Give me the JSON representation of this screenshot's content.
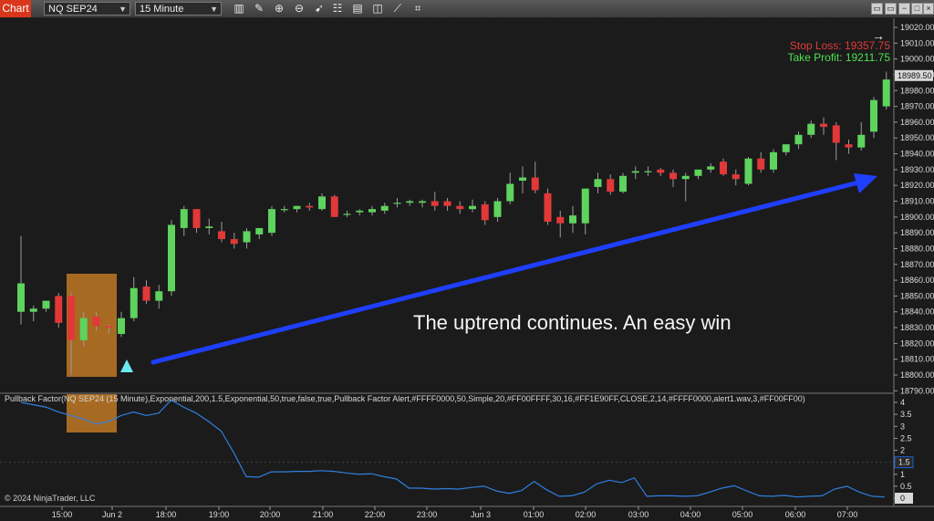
{
  "toolbar": {
    "app_label": "Chart",
    "instrument": "NQ SEP24",
    "interval": "15 Minute",
    "tools": [
      "bar-type-icon",
      "pencil-icon",
      "zoom-in-icon",
      "zoom-out-icon",
      "pointer-icon",
      "properties-icon",
      "data-box-icon",
      "strategies-icon",
      "drawing-tools-icon",
      "indicators-icon"
    ],
    "window_buttons": [
      "▭",
      "▭",
      "−",
      "□",
      "×"
    ]
  },
  "colors": {
    "up": "#5ed35e",
    "down": "#e23838",
    "accent_arrow": "#1f3fff",
    "box": "#c77d24"
  },
  "chart_data": {
    "type": "candlestick",
    "price_axis": [
      "19020.00",
      "19010.00",
      "19000.00",
      "18990.00",
      "18980.00",
      "18970.00",
      "18960.00",
      "18950.00",
      "18940.00",
      "18930.00",
      "18920.00",
      "18910.00",
      "18900.00",
      "18890.00",
      "18880.00",
      "18870.00",
      "18860.00",
      "18850.00",
      "18840.00",
      "18830.00",
      "18820.00",
      "18810.00",
      "18800.00",
      "18790.00"
    ],
    "current_price": "18989.50",
    "time_axis": [
      "15:00",
      "Jun 2",
      "18:00",
      "19:00",
      "20:00",
      "21:00",
      "22:00",
      "23:00",
      "Jun 3",
      "01:00",
      "02:00",
      "03:00",
      "04:00",
      "05:00",
      "06:00",
      "07:00"
    ],
    "candles": [
      {
        "o": 18840,
        "h": 18888,
        "l": 18832,
        "c": 18858
      },
      {
        "o": 18840,
        "h": 18844,
        "l": 18834,
        "c": 18842
      },
      {
        "o": 18842,
        "h": 18847,
        "l": 18840,
        "c": 18847
      },
      {
        "o": 18850,
        "h": 18852,
        "l": 18830,
        "c": 18833
      },
      {
        "o": 18850,
        "h": 18852,
        "l": 18800,
        "c": 18822
      },
      {
        "o": 18822,
        "h": 18840,
        "l": 18818,
        "c": 18836
      },
      {
        "o": 18837,
        "h": 18840,
        "l": 18828,
        "c": 18831
      },
      {
        "o": 18831,
        "h": 18832,
        "l": 18826,
        "c": 18830
      },
      {
        "o": 18826,
        "h": 18840,
        "l": 18824,
        "c": 18836
      },
      {
        "o": 18836,
        "h": 18862,
        "l": 18834,
        "c": 18855
      },
      {
        "o": 18856,
        "h": 18860,
        "l": 18845,
        "c": 18847
      },
      {
        "o": 18847,
        "h": 18857,
        "l": 18842,
        "c": 18853
      },
      {
        "o": 18853,
        "h": 18898,
        "l": 18850,
        "c": 18895
      },
      {
        "o": 18893,
        "h": 18907,
        "l": 18888,
        "c": 18905
      },
      {
        "o": 18905,
        "h": 18905,
        "l": 18890,
        "c": 18893
      },
      {
        "o": 18893,
        "h": 18899,
        "l": 18889,
        "c": 18894
      },
      {
        "o": 18891,
        "h": 18897,
        "l": 18884,
        "c": 18886
      },
      {
        "o": 18886,
        "h": 18890,
        "l": 18880,
        "c": 18883
      },
      {
        "o": 18884,
        "h": 18893,
        "l": 18880,
        "c": 18891
      },
      {
        "o": 18889,
        "h": 18893,
        "l": 18886,
        "c": 18893
      },
      {
        "o": 18890,
        "h": 18907,
        "l": 18888,
        "c": 18905
      },
      {
        "o": 18905,
        "h": 18907,
        "l": 18903,
        "c": 18905
      },
      {
        "o": 18905,
        "h": 18907,
        "l": 18903,
        "c": 18907
      },
      {
        "o": 18907,
        "h": 18909,
        "l": 18904,
        "c": 18906
      },
      {
        "o": 18905,
        "h": 18915,
        "l": 18904,
        "c": 18913
      },
      {
        "o": 18913,
        "h": 18914,
        "l": 18900,
        "c": 18900
      },
      {
        "o": 18902,
        "h": 18904,
        "l": 18900,
        "c": 18902
      },
      {
        "o": 18903,
        "h": 18905,
        "l": 18901,
        "c": 18904
      },
      {
        "o": 18903,
        "h": 18907,
        "l": 18901,
        "c": 18905
      },
      {
        "o": 18904,
        "h": 18909,
        "l": 18902,
        "c": 18907
      },
      {
        "o": 18909,
        "h": 18912,
        "l": 18906,
        "c": 18909
      },
      {
        "o": 18909,
        "h": 18911,
        "l": 18907,
        "c": 18910
      },
      {
        "o": 18909,
        "h": 18911,
        "l": 18906,
        "c": 18910
      },
      {
        "o": 18910,
        "h": 18916,
        "l": 18904,
        "c": 18907
      },
      {
        "o": 18910,
        "h": 18912,
        "l": 18904,
        "c": 18907
      },
      {
        "o": 18907,
        "h": 18910,
        "l": 18902,
        "c": 18905
      },
      {
        "o": 18905,
        "h": 18911,
        "l": 18903,
        "c": 18907
      },
      {
        "o": 18908,
        "h": 18910,
        "l": 18895,
        "c": 18898
      },
      {
        "o": 18900,
        "h": 18912,
        "l": 18897,
        "c": 18910
      },
      {
        "o": 18910,
        "h": 18928,
        "l": 18908,
        "c": 18921
      },
      {
        "o": 18923,
        "h": 18932,
        "l": 18915,
        "c": 18925
      },
      {
        "o": 18925,
        "h": 18935,
        "l": 18915,
        "c": 18917
      },
      {
        "o": 18915,
        "h": 18918,
        "l": 18895,
        "c": 18897
      },
      {
        "o": 18900,
        "h": 18904,
        "l": 18887,
        "c": 18896
      },
      {
        "o": 18896,
        "h": 18907,
        "l": 18890,
        "c": 18901
      },
      {
        "o": 18896,
        "h": 18918,
        "l": 18889,
        "c": 18918
      },
      {
        "o": 18919,
        "h": 18928,
        "l": 18915,
        "c": 18924
      },
      {
        "o": 18924,
        "h": 18927,
        "l": 18914,
        "c": 18916
      },
      {
        "o": 18916,
        "h": 18928,
        "l": 18915,
        "c": 18926
      },
      {
        "o": 18928,
        "h": 18932,
        "l": 18924,
        "c": 18929
      },
      {
        "o": 18929,
        "h": 18932,
        "l": 18926,
        "c": 18929
      },
      {
        "o": 18930,
        "h": 18931,
        "l": 18926,
        "c": 18928
      },
      {
        "o": 18928,
        "h": 18930,
        "l": 18919,
        "c": 18924
      },
      {
        "o": 18924,
        "h": 18928,
        "l": 18910,
        "c": 18926
      },
      {
        "o": 18926,
        "h": 18930,
        "l": 18924,
        "c": 18930
      },
      {
        "o": 18930,
        "h": 18934,
        "l": 18928,
        "c": 18932
      },
      {
        "o": 18935,
        "h": 18937,
        "l": 18926,
        "c": 18927
      },
      {
        "o": 18927,
        "h": 18930,
        "l": 18920,
        "c": 18924
      },
      {
        "o": 18921,
        "h": 18938,
        "l": 18920,
        "c": 18937
      },
      {
        "o": 18937,
        "h": 18941,
        "l": 18928,
        "c": 18930
      },
      {
        "o": 18930,
        "h": 18943,
        "l": 18928,
        "c": 18941
      },
      {
        "o": 18941,
        "h": 18946,
        "l": 18939,
        "c": 18946
      },
      {
        "o": 18946,
        "h": 18954,
        "l": 18943,
        "c": 18952
      },
      {
        "o": 18952,
        "h": 18961,
        "l": 18950,
        "c": 18959
      },
      {
        "o": 18959,
        "h": 18963,
        "l": 18952,
        "c": 18957
      },
      {
        "o": 18958,
        "h": 18960,
        "l": 18936,
        "c": 18947
      },
      {
        "o": 18946,
        "h": 18949,
        "l": 18940,
        "c": 18944
      },
      {
        "o": 18944,
        "h": 18960,
        "l": 18942,
        "c": 18952
      },
      {
        "o": 18954,
        "h": 18976,
        "l": 18950,
        "c": 18974
      },
      {
        "o": 18970,
        "h": 18992,
        "l": 18968,
        "c": 18987
      }
    ],
    "indicator": {
      "label": "Pullback Factor(NQ SEP24 (15 Minute),Exponential,200,1.5,Exponential,50,true,false,true,Pullback Factor Alert,#FFFF0000,50,Simple,20,#FF00FFFF,30,16,#FF1E90FF,CLOSE,2,14,#FFFF0000,alert1.wav,3,#FF00FF00)",
      "axis": [
        "4",
        "3.5",
        "3",
        "2.5",
        "2",
        "1.5",
        "1",
        "0.5",
        "0"
      ],
      "threshold_label": "1.5",
      "current_label": "0",
      "values": [
        4,
        3.9,
        3.8,
        3.6,
        3.45,
        3.3,
        3.1,
        3.2,
        3.45,
        3.6,
        3.45,
        3.55,
        4.1,
        3.8,
        3.55,
        3.2,
        2.8,
        1.9,
        0.9,
        0.88,
        1.1,
        1.1,
        1.12,
        1.12,
        1.15,
        1.12,
        1.05,
        1.0,
        1.02,
        0.9,
        0.8,
        0.42,
        0.42,
        0.38,
        0.4,
        0.38,
        0.45,
        0.5,
        0.3,
        0.2,
        0.32,
        0.7,
        0.35,
        0.08,
        0.1,
        0.25,
        0.6,
        0.75,
        0.65,
        0.85,
        0.08,
        0.1,
        0.1,
        0.08,
        0.1,
        0.25,
        0.42,
        0.52,
        0.3,
        0.1,
        0.08,
        0.12,
        0.05,
        0.08,
        0.1,
        0.38,
        0.5,
        0.25,
        0.08,
        0.05
      ]
    }
  },
  "annotations": {
    "caption": "The uptrend continues. An easy win",
    "stop_loss": "Stop Loss: 19357.75",
    "take_profit": "Take Profit: 19211.75"
  },
  "footer": {
    "copyright": "© 2024 NinjaTrader, LLC"
  }
}
